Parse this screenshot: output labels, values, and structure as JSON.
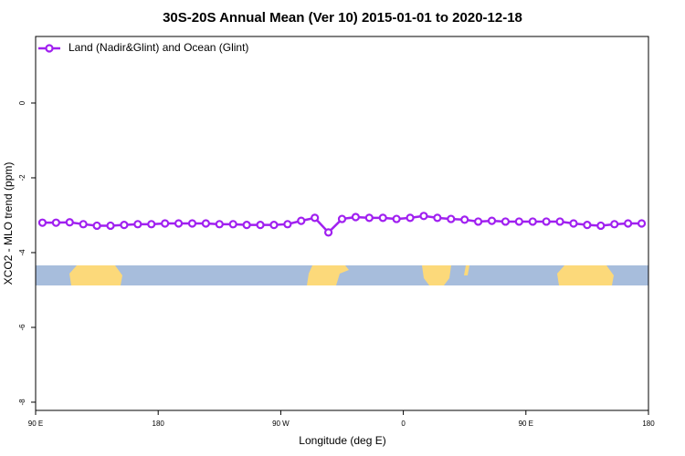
{
  "chart_data": {
    "type": "line",
    "title": "30S-20S Annual Mean (Ver 10)   2015-01-01 to 2020-12-18",
    "x_label": "Longitude (deg E)",
    "y_label": "XCO2 - MLO trend (ppm)",
    "x": [
      95,
      105,
      115,
      125,
      135,
      145,
      155,
      165,
      175,
      185,
      195,
      205,
      215,
      225,
      235,
      245,
      255,
      265,
      275,
      285,
      295,
      305,
      315,
      325,
      335,
      345,
      355,
      365,
      375,
      385,
      395,
      405,
      415,
      425,
      435,
      445,
      455,
      465,
      475,
      485,
      495,
      505,
      515,
      525,
      535
    ],
    "series": [
      {
        "name": "Land (Nadir&Glint) and Ocean (Glint)",
        "color": "#a020f0",
        "values": [
          -3.2,
          -3.2,
          -3.19,
          -3.24,
          -3.28,
          -3.28,
          -3.26,
          -3.24,
          -3.24,
          -3.22,
          -3.22,
          -3.22,
          -3.22,
          -3.24,
          -3.24,
          -3.26,
          -3.26,
          -3.26,
          -3.24,
          -3.15,
          -3.07,
          -3.46,
          -3.1,
          -3.05,
          -3.07,
          -3.07,
          -3.1,
          -3.07,
          -3.02,
          -3.07,
          -3.1,
          -3.12,
          -3.17,
          -3.15,
          -3.17,
          -3.17,
          -3.17,
          -3.17,
          -3.17,
          -3.22,
          -3.26,
          -3.28,
          -3.24,
          -3.22,
          -3.22
        ]
      }
    ],
    "xlim": [
      90,
      540
    ],
    "xticks": [
      {
        "value": 90,
        "label": "90 E"
      },
      180,
      {
        "value": 270,
        "label": "90 W"
      },
      {
        "value": 360,
        "label": "0"
      },
      {
        "value": 450,
        "label": "90 E"
      },
      {
        "value": 540,
        "label": "180"
      }
    ],
    "ylim": [
      -8.22,
      1.78
    ],
    "yticks": [
      0,
      -2,
      -4,
      -6,
      -8
    ],
    "legend": "top-left"
  }
}
